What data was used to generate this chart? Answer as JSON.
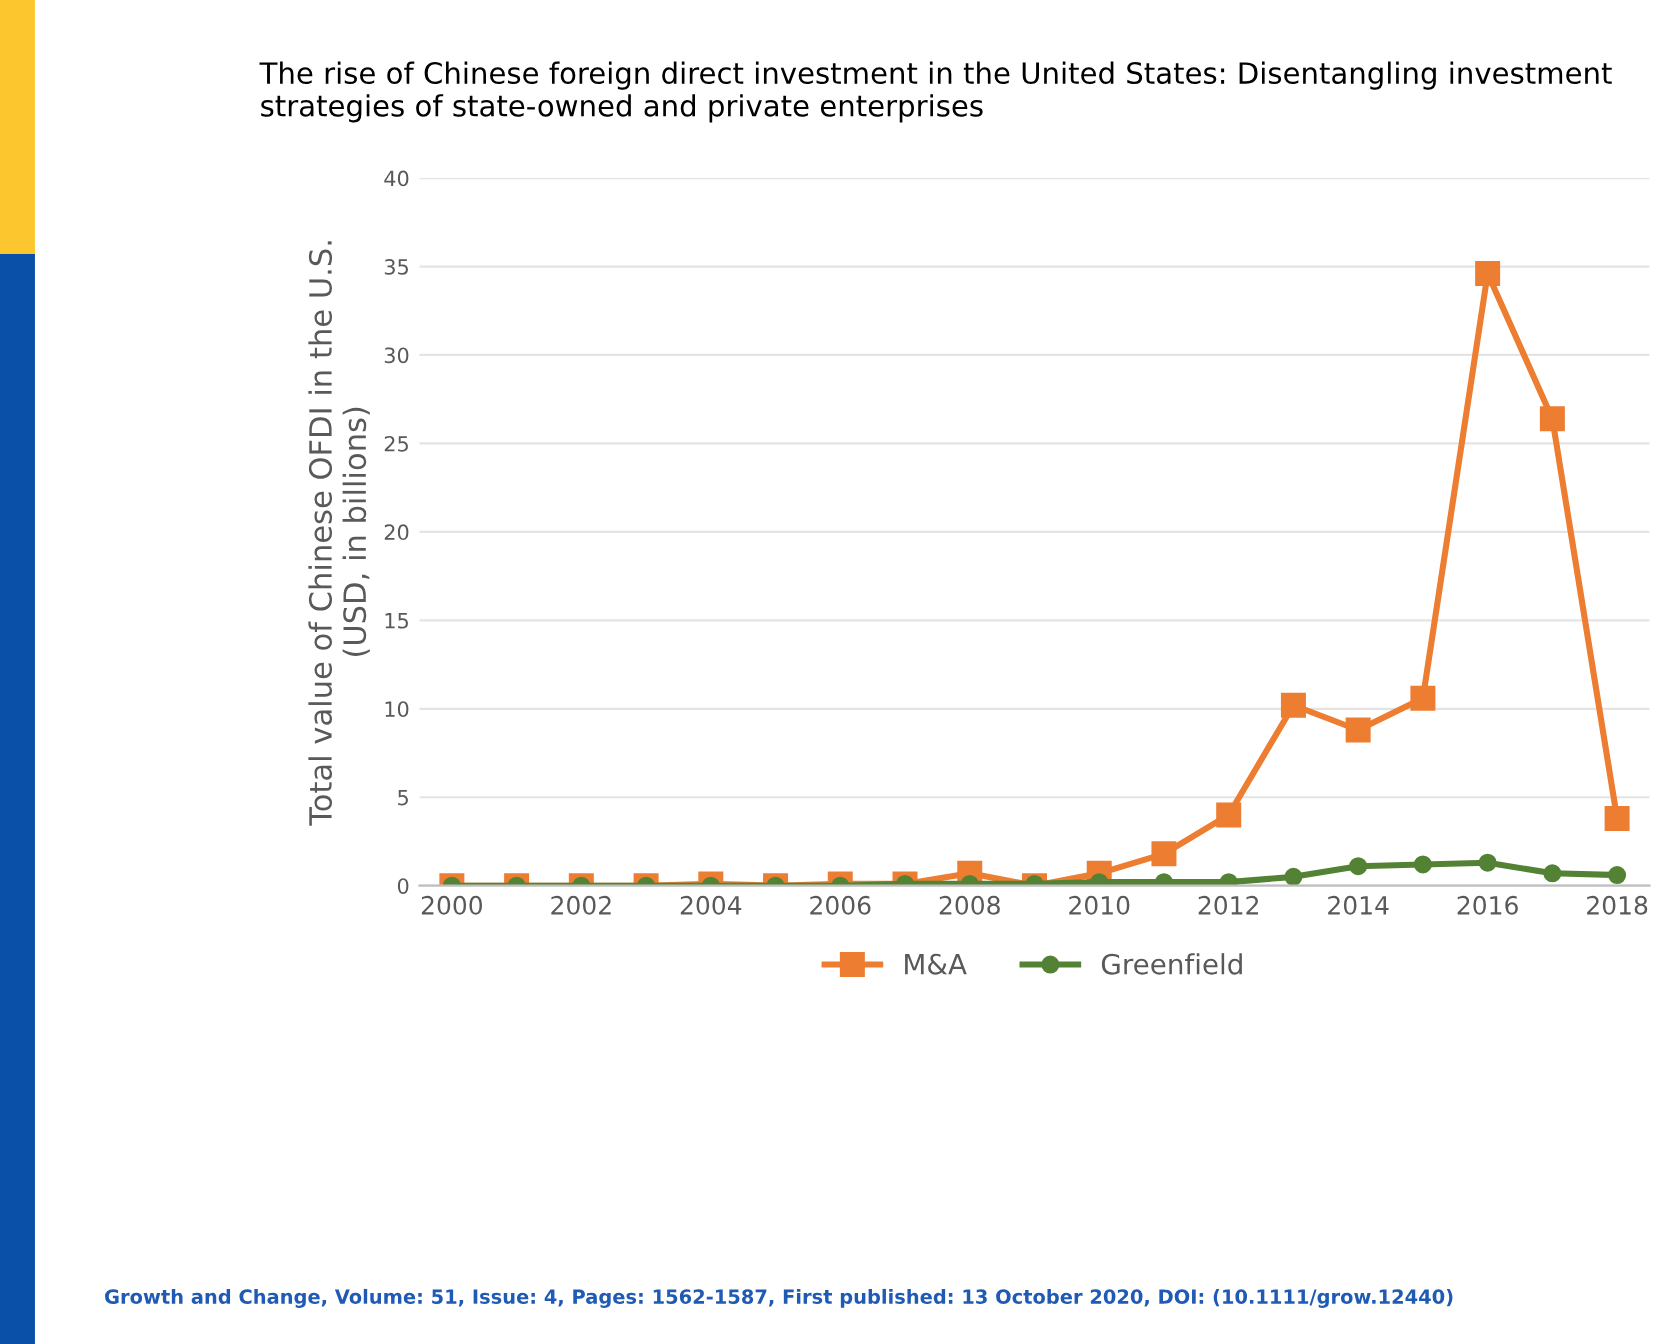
{
  "chart_data": {
    "type": "line",
    "title": "The rise of Chinese foreign direct investment in the United States: Disentangling investment strategies of state-owned and private enterprises",
    "ylabel": "Total value of Chinese OFDI in the U.S.\n(USD, in billions)",
    "x": [
      2000,
      2001,
      2002,
      2003,
      2004,
      2005,
      2006,
      2007,
      2008,
      2009,
      2010,
      2011,
      2012,
      2013,
      2014,
      2015,
      2016,
      2017,
      2018
    ],
    "series": [
      {
        "name": "M&A",
        "color": "#ed7d31",
        "marker": "square",
        "values": [
          0,
          0,
          0,
          0,
          0.1,
          0,
          0.1,
          0.1,
          0.7,
          0,
          0.7,
          1.8,
          4.0,
          10.2,
          8.8,
          10.6,
          34.6,
          26.4,
          3.8
        ]
      },
      {
        "name": "Greenfield",
        "color": "#548235",
        "marker": "circle",
        "values": [
          0,
          0,
          0,
          0,
          0,
          0,
          0,
          0.1,
          0.1,
          0.1,
          0.2,
          0.2,
          0.2,
          0.5,
          1.1,
          1.2,
          1.3,
          0.7,
          0.6
        ]
      }
    ],
    "xlim": [
      1999.5,
      2018.5
    ],
    "xticks": [
      2000,
      2002,
      2004,
      2006,
      2008,
      2010,
      2012,
      2014,
      2016,
      2018
    ],
    "ylim": [
      0,
      40
    ],
    "yticks": [
      0,
      5,
      10,
      15,
      20,
      25,
      30,
      35,
      40
    ],
    "grid": "y",
    "legend": "bottom",
    "line_style": "solid",
    "annotations": [
      "Growth and Change, Volume: 51, Issue: 4, Pages: 1562-1587, First published: 13 October 2020, DOI: (10.1111/grow.12440)"
    ]
  }
}
